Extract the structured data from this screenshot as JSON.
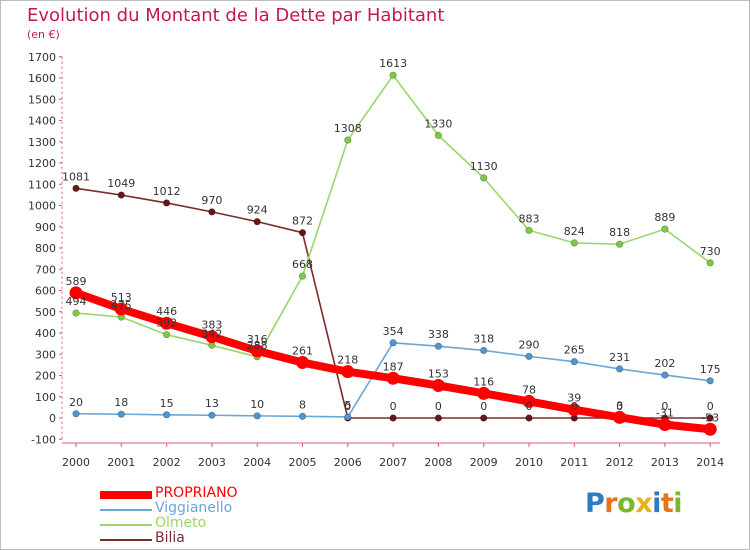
{
  "title": "Evolution du Montant de la Dette par Habitant",
  "subtitle": "(en €)",
  "logo": {
    "letters": [
      "P",
      "r",
      "o",
      "x",
      "i",
      "t",
      "i"
    ],
    "colors": [
      "#2e7bc4",
      "#e8731a",
      "#7ab829",
      "#e8b21a",
      "#2e7bc4",
      "#e8731a",
      "#7ab829"
    ]
  },
  "chart_data": {
    "type": "line",
    "categories": [
      "2000",
      "2001",
      "2002",
      "2003",
      "2004",
      "2005",
      "2006",
      "2007",
      "2008",
      "2009",
      "2010",
      "2011",
      "2012",
      "2013",
      "2014"
    ],
    "ylim": [
      -100,
      1700
    ],
    "yticks": [
      "-100",
      "0",
      "100",
      "200",
      "300",
      "400",
      "500",
      "600",
      "700",
      "800",
      "900",
      "1000",
      "1100",
      "1200",
      "1300",
      "1400",
      "1500",
      "1600",
      "1700"
    ],
    "grid": false,
    "legend_position": "bottom-left",
    "series": [
      {
        "name": "Bilia",
        "color": "#7a2c2c",
        "marker": "#6b1414",
        "values": [
          1081,
          1049,
          1012,
          970,
          924,
          872,
          0,
          0,
          0,
          0,
          0,
          0,
          0,
          0,
          0
        ],
        "labels": [
          "1081",
          "1049",
          "1012",
          "970",
          "924",
          "872",
          "0",
          "0",
          "0",
          "0",
          "0",
          "0",
          "0",
          "0",
          "0"
        ]
      },
      {
        "name": "Viggianello",
        "color": "#6aa6d6",
        "marker": "#4f95cf",
        "values": [
          20,
          18,
          15,
          13,
          10,
          8,
          5,
          354,
          338,
          318,
          290,
          265,
          231,
          202,
          175
        ],
        "labels": [
          "20",
          "18",
          "15",
          "13",
          "10",
          "8",
          "5",
          "354",
          "338",
          "318",
          "290",
          "265",
          "231",
          "202",
          "175"
        ]
      },
      {
        "name": "Olmeto",
        "color": "#9ad66b",
        "marker": "#7cc942",
        "values": [
          494,
          475,
          392,
          342,
          288,
          668,
          1308,
          1613,
          1330,
          1130,
          883,
          824,
          818,
          889,
          730
        ],
        "labels": [
          "494",
          "475",
          "392",
          "342",
          "288",
          "668",
          "1308",
          "1613",
          "1330",
          "1130",
          "883",
          "824",
          "818",
          "889",
          "730"
        ]
      },
      {
        "name": "PROPRIANO",
        "color": "#ff0000",
        "marker": "#ff0000",
        "values": [
          589,
          513,
          446,
          383,
          316,
          261,
          218,
          187,
          153,
          116,
          78,
          39,
          3,
          -31,
          -53
        ],
        "labels": [
          "589",
          "513",
          "446",
          "383",
          "316",
          "261",
          "218",
          "187",
          "153",
          "116",
          "78",
          "39",
          "3",
          "-31",
          "-53"
        ]
      }
    ],
    "legend": [
      {
        "name": "PROPRIANO",
        "color": "#ff0000",
        "width": 8
      },
      {
        "name": "Viggianello",
        "color": "#6aa6d6",
        "width": 2
      },
      {
        "name": "Olmeto",
        "color": "#9ad66b",
        "width": 2
      },
      {
        "name": "Bilia",
        "color": "#7a2c2c",
        "width": 2
      }
    ]
  }
}
